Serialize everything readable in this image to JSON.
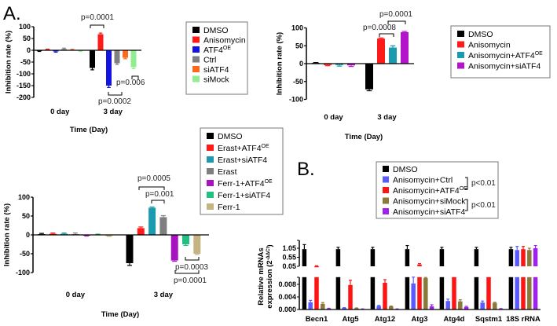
{
  "panels": {
    "a": "A.",
    "b": "B."
  },
  "chart_data": [
    {
      "type": "bar",
      "panel": "A",
      "ylabel": "Inhibition rate (%)",
      "xlabel": "Time (Day)",
      "ylim": [
        -200,
        100
      ],
      "yticks": [
        "100",
        "50",
        "0",
        "-50",
        "-100",
        "-150",
        "-200"
      ],
      "categories": [
        "0 day",
        "3 day"
      ],
      "legend_position": "right",
      "series": [
        {
          "name": "DMSO",
          "color": "#000000",
          "values": [
            -3,
            -75
          ],
          "errors": [
            2,
            8
          ]
        },
        {
          "name": "Anisomycin",
          "color": "#ff1a1a",
          "values": [
            3,
            68
          ],
          "errors": [
            2,
            5
          ]
        },
        {
          "name": "ATF4",
          "sup": "OE",
          "color": "#1414e0",
          "values": [
            -5,
            -150
          ],
          "errors": [
            3,
            8
          ]
        },
        {
          "name": "Ctrl",
          "color": "#808080",
          "values": [
            5,
            -55
          ],
          "errors": [
            4,
            5
          ]
        },
        {
          "name": "siATF4",
          "color": "#ff6a1a",
          "values": [
            2,
            -32
          ],
          "errors": [
            2,
            4
          ]
        },
        {
          "name": "siMock",
          "color": "#90ee90",
          "values": [
            -3,
            -72
          ],
          "errors": [
            2,
            6
          ]
        }
      ],
      "annotations": [
        "p=0.0001",
        "p=0.006",
        "p=0.0002"
      ]
    },
    {
      "type": "bar",
      "panel": "A",
      "ylabel": "Inhibition rate (%)",
      "xlabel": "Time (Day)",
      "ylim": [
        -100,
        100
      ],
      "yticks": [
        "100",
        "50",
        "0",
        "-50",
        "-100"
      ],
      "categories": [
        "0 day",
        "3 day"
      ],
      "legend_position": "right",
      "series": [
        {
          "name": "DMSO",
          "color": "#000000",
          "values": [
            2,
            -72
          ],
          "errors": [
            1,
            4
          ]
        },
        {
          "name": "Anisomycin",
          "color": "#ff1a1a",
          "values": [
            -4,
            70
          ],
          "errors": [
            2,
            2
          ]
        },
        {
          "name": "Anisomycin+ATF4",
          "sup": "OE",
          "color": "#1a9aae",
          "values": [
            -4,
            45
          ],
          "errors": [
            3,
            5
          ]
        },
        {
          "name": "Anisomycin+siATF4",
          "color": "#b414c8",
          "values": [
            -5,
            88
          ],
          "errors": [
            3,
            2
          ]
        }
      ],
      "annotations": [
        "p=0.0001",
        "p=0.0008"
      ]
    },
    {
      "type": "bar",
      "panel": "A",
      "ylabel": "Inhibition rate (%)",
      "xlabel": "Time (Day)",
      "ylim": [
        -100,
        100
      ],
      "yticks": [
        "100",
        "50",
        "0",
        "-50",
        "-100"
      ],
      "categories": [
        "0 day",
        "3 day"
      ],
      "legend_position": "top-right",
      "series": [
        {
          "name": "DMSO",
          "color": "#000000",
          "values": [
            2,
            -75
          ],
          "errors": [
            2,
            6
          ]
        },
        {
          "name": "Erast+ATF4",
          "sup": "OE",
          "color": "#ff1a1a",
          "values": [
            3,
            18
          ],
          "errors": [
            2,
            3
          ]
        },
        {
          "name": "Erast+siATF4",
          "color": "#1b9ab0",
          "values": [
            3,
            72
          ],
          "errors": [
            2,
            2
          ]
        },
        {
          "name": "Erast",
          "color": "#7f7f7f",
          "values": [
            2,
            47
          ],
          "errors": [
            3,
            4
          ]
        },
        {
          "name": "Ferr-1+ATF4",
          "sup": "OE",
          "color": "#a614c0",
          "values": [
            -2,
            -68
          ],
          "errors": [
            1,
            2
          ]
        },
        {
          "name": "Ferr-1+siATF4",
          "color": "#22c080",
          "values": [
            1,
            -25
          ],
          "errors": [
            1,
            3
          ]
        },
        {
          "name": "Ferr-1",
          "color": "#c4b482",
          "values": [
            -3,
            -50
          ],
          "errors": [
            1,
            2
          ]
        }
      ],
      "annotations": [
        "p=0.0005",
        "p=0.001",
        "p=0.0003",
        "p=0.0001"
      ]
    },
    {
      "type": "bar",
      "panel": "B",
      "ylabel": "Relative mRNAs expression (2^-ΔΔCt)",
      "ylabel_main": "Relative mRNAs",
      "ylabel_sub": "expression (2",
      "ylabel_sup": "-ΔΔCt",
      "ylabel_end": ")",
      "broken_axis": true,
      "yticks_upper": [
        "1.05",
        "0.55",
        "0.05"
      ],
      "yticks_lower": [
        "0.008",
        "0.004",
        "0.000"
      ],
      "categories": [
        "Becn1",
        "Atg5",
        "Atg12",
        "Atg3",
        "Atg4d",
        "Sqstm1",
        "18S rRNA"
      ],
      "legend_position": "top",
      "series": [
        {
          "name": "DMSO",
          "color": "#000000",
          "values": [
            1.0,
            1.0,
            1.0,
            1.0,
            1.0,
            1.0,
            1.0
          ],
          "errors": [
            0.25,
            0.1,
            0.1,
            0.2,
            0.1,
            0.1,
            0.1
          ]
        },
        {
          "name": "Anisomycin+Ctrl",
          "color": "#5a5aff",
          "values": [
            0.0023,
            0.0005,
            0.0011,
            0.0083,
            0.0027,
            0.0022,
            0.95
          ],
          "errors": [
            0.0006,
            0.0001,
            0.0002,
            0.002,
            0.0006,
            0.0005,
            0.2
          ]
        },
        {
          "name": "Anisomycin+ATF4",
          "sup": "OE",
          "color": "#ff1414",
          "values": [
            0.06,
            0.0078,
            0.0085,
            0.15,
            0.04,
            0.03,
            1.0
          ],
          "errors": [
            0.02,
            0.0015,
            0.001,
            0.05,
            0.01,
            0.01,
            0.15
          ]
        },
        {
          "name": "Anisomycin+siMock",
          "color": "#8a7a3a",
          "values": [
            0.0018,
            0.0004,
            0.001,
            0.01,
            0.0026,
            0.0021,
            0.95
          ],
          "errors": [
            0.0004,
            0.0001,
            0.0001,
            0.0002,
            0.0005,
            0.0002,
            0.1
          ]
        },
        {
          "name": "Anisomycin+siATF4",
          "color": "#a020f0",
          "values": [
            0.0003,
            0.0001,
            0.0001,
            0.001,
            0.0008,
            0.0002,
            1.05
          ],
          "errors": [
            0.0001,
            0.0001,
            0.0001,
            0.0005,
            0.0002,
            0.0001,
            0.15
          ]
        }
      ],
      "annotations": [
        "p<0.01",
        "p<0.01"
      ]
    }
  ]
}
